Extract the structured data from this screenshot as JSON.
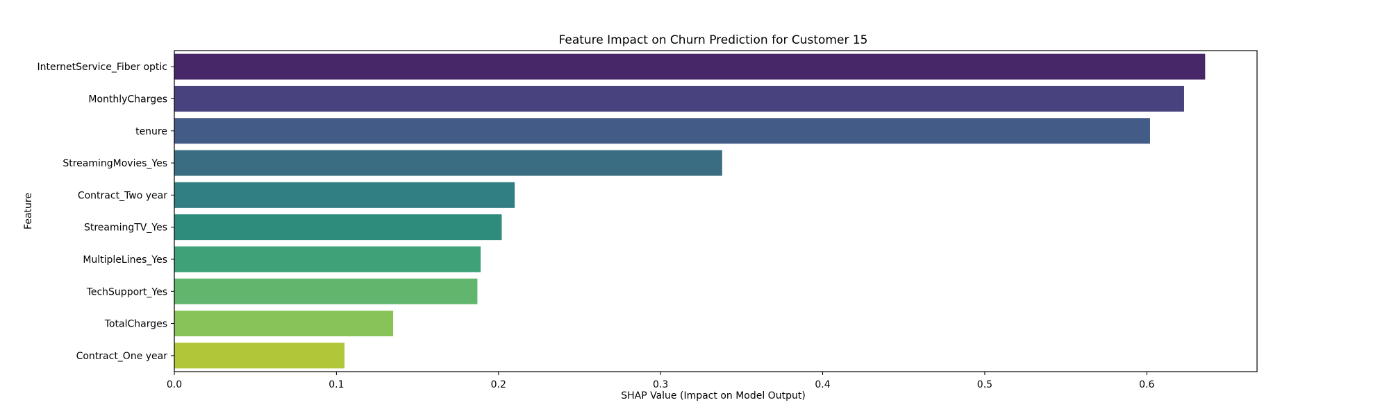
{
  "chart_data": {
    "type": "bar",
    "orientation": "horizontal",
    "title": "Feature Impact on Churn Prediction for Customer 15",
    "xlabel": "SHAP Value (Impact on Model Output)",
    "ylabel": "Feature",
    "xlim": [
      0,
      0.668
    ],
    "xticks": [
      0.0,
      0.1,
      0.2,
      0.3,
      0.4,
      0.5,
      0.6
    ],
    "xtick_labels": [
      "0.0",
      "0.1",
      "0.2",
      "0.3",
      "0.4",
      "0.5",
      "0.6"
    ],
    "grid": false,
    "categories": [
      "InternetService_Fiber optic",
      "MonthlyCharges",
      "tenure",
      "StreamingMovies_Yes",
      "Contract_Two year",
      "StreamingTV_Yes",
      "MultipleLines_Yes",
      "TechSupport_Yes",
      "TotalCharges",
      "Contract_One year"
    ],
    "values": [
      0.636,
      0.623,
      0.602,
      0.338,
      0.21,
      0.202,
      0.189,
      0.187,
      0.135,
      0.105
    ],
    "colors": [
      "#482768",
      "#48437f",
      "#435c87",
      "#3a6d82",
      "#327f83",
      "#2e8c7c",
      "#3ea177",
      "#62b56d",
      "#88c35a",
      "#b2c63a"
    ]
  }
}
